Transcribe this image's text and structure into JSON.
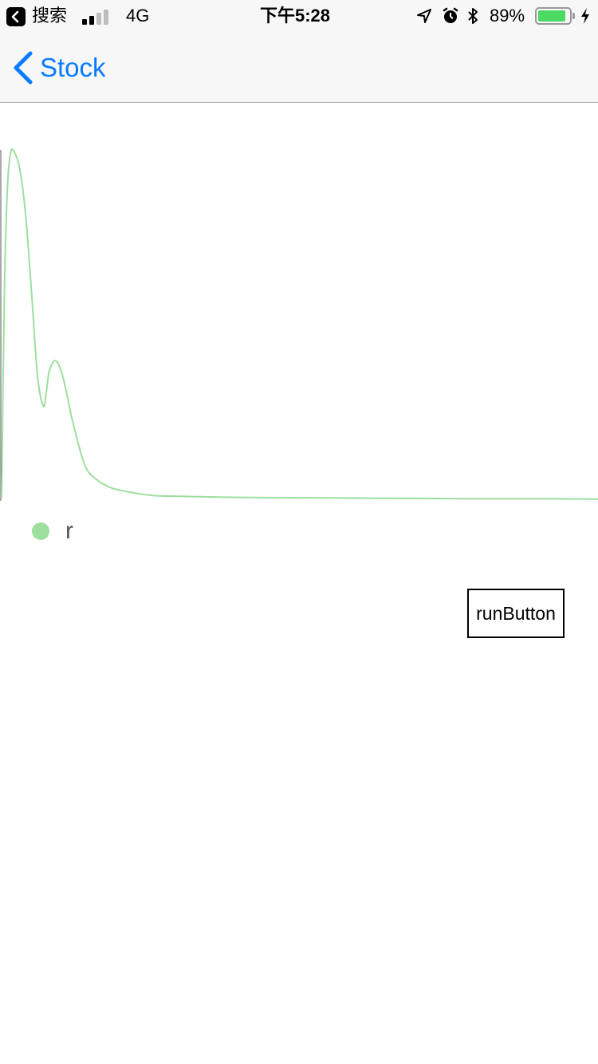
{
  "status_bar": {
    "back_app": "搜索",
    "carrier": "4G",
    "time": "下午5:28",
    "battery": "89%",
    "battery_level": 0.89,
    "signal_bars_active": 2,
    "icons": [
      "back-app-icon",
      "signal-icon",
      "location-icon",
      "alarm-icon",
      "bluetooth-icon",
      "battery-icon",
      "charging-icon"
    ]
  },
  "nav": {
    "back_label": "Stock",
    "icons": [
      "chevron-left-icon"
    ]
  },
  "chart_data": {
    "type": "line",
    "series": [
      {
        "name": "r",
        "color": "#9ddf9f",
        "x": [
          0,
          0.5,
          1,
          1.5,
          2,
          3,
          4,
          5,
          6,
          7,
          7.5,
          8,
          9,
          10,
          11,
          12,
          14,
          16,
          18,
          20,
          25,
          30,
          40,
          50,
          60,
          70,
          80,
          90,
          100
        ],
        "y": [
          0.01,
          0.62,
          0.9,
          0.99,
          0.998,
          0.95,
          0.82,
          0.6,
          0.36,
          0.27,
          0.31,
          0.37,
          0.4,
          0.37,
          0.3,
          0.22,
          0.1,
          0.06,
          0.04,
          0.03,
          0.016,
          0.013,
          0.01,
          0.009,
          0.008,
          0.007,
          0.006,
          0.006,
          0.005
        ]
      }
    ],
    "xlim": [
      0,
      100
    ],
    "ylim": [
      0,
      1
    ],
    "grid": false,
    "legend_placement": "bottom-left"
  },
  "run_button": {
    "label": "runButton"
  }
}
